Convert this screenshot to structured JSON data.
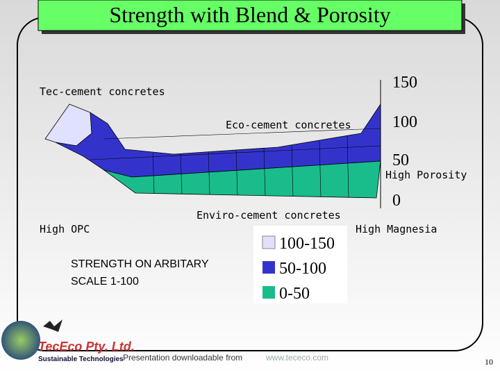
{
  "header": {
    "title": "Strength with Blend & Porosity"
  },
  "surface": {
    "labels": [
      "Tec-cement concretes",
      "Eco-cement concretes",
      "Enviro-cement concretes",
      "High OPC",
      "High Magnesia",
      "High Porosity"
    ],
    "axis_ticks": [
      150,
      100,
      50,
      0
    ],
    "note": [
      "STRENGTH ON ARBITARY",
      "SCALE 1-100"
    ]
  },
  "legend": [
    "100-150",
    "50-100",
    "0-50"
  ],
  "footer": {
    "company": "TecEco Pty. Ltd.",
    "tagline": "Sustainable Technologies",
    "download": "Presentation downloadable from",
    "url": "www.tececo.com",
    "page": "10"
  }
}
